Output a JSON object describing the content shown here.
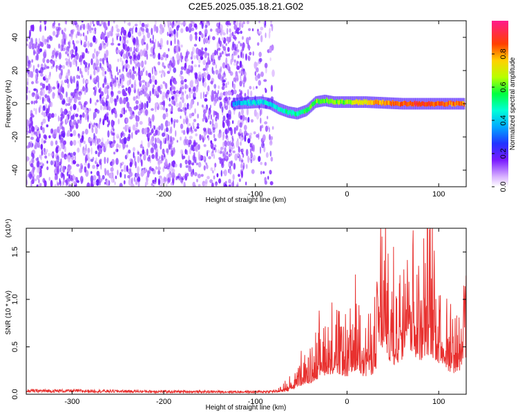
{
  "title": "C2E5.2025.035.18.21.G02",
  "chart_data": [
    {
      "type": "heatmap",
      "xlabel": "Height of straight line (km)",
      "ylabel": "Frequency (Hz)",
      "xlim": [
        -350,
        130
      ],
      "ylim": [
        -50,
        50
      ],
      "x_ticks": [
        "-300",
        "-200",
        "-100",
        "0",
        "100"
      ],
      "y_ticks": [
        "-40",
        "-20",
        "0",
        "20",
        "40"
      ],
      "colorbar": {
        "label": "Normalized spectral amplitude",
        "ticks": [
          "0.0",
          "0.2",
          "0.4",
          "0.6",
          "0.8"
        ],
        "range": [
          0,
          1
        ],
        "colormap": "rainbow (white-purple-blue-cyan-green-yellow-red-magenta)"
      },
      "signal_ridge": {
        "x": [
          -125,
          -110,
          -95,
          -85,
          -75,
          -65,
          -55,
          -45,
          -35,
          -25,
          -15,
          0,
          20,
          40,
          60,
          80,
          100,
          128
        ],
        "frequency": [
          0,
          0.5,
          1,
          0,
          -3,
          -5,
          -6,
          -4,
          1,
          2,
          1,
          1,
          1,
          0.5,
          0,
          0,
          0,
          0
        ],
        "amplitude": [
          0.35,
          0.4,
          0.45,
          0.4,
          0.45,
          0.5,
          0.5,
          0.55,
          0.6,
          0.6,
          0.6,
          0.65,
          0.75,
          0.8,
          0.85,
          0.9,
          0.85,
          0.8
        ]
      },
      "noise_region_x": [
        -350,
        -80
      ]
    },
    {
      "type": "line",
      "xlabel": "Height of straight line (km)",
      "ylabel": "SNR (10 * v/v)",
      "y_multiplier": "(x10⁴)",
      "xlim": [
        -350,
        130
      ],
      "ylim": [
        0,
        17500
      ],
      "x_ticks": [
        "-300",
        "-200",
        "-100",
        "0",
        "100"
      ],
      "y_ticks": [
        "0.0",
        "0.5",
        "1.0",
        "1.5"
      ],
      "series": [
        {
          "color": "#e8312f",
          "x": [
            -350,
            -300,
            -200,
            -100,
            -75,
            -60,
            -50,
            -40,
            -30,
            -20,
            -10,
            0,
            10,
            20,
            30,
            35,
            40,
            50,
            60,
            65,
            70,
            80,
            90,
            100,
            110,
            120,
            130
          ],
          "y": [
            500,
            500,
            400,
            350,
            450,
            1200,
            2500,
            3200,
            5000,
            6000,
            5500,
            5000,
            7000,
            5000,
            6000,
            11000,
            12000,
            8000,
            10000,
            17500,
            12000,
            10000,
            12000,
            9000,
            7000,
            6000,
            10000
          ]
        }
      ]
    }
  ]
}
